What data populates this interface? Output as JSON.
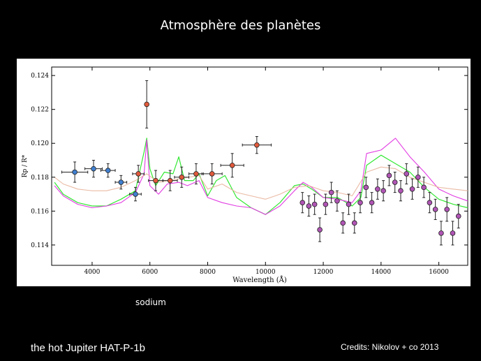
{
  "slide": {
    "title": "Atmosphère des planètes",
    "annotation": "sodium",
    "caption": "the hot Jupiter HAT-P-1b",
    "credits": "Credits: Nikolov + co 2013"
  },
  "chart_data": {
    "type": "scatter",
    "xlabel": "Wavelength (Å)",
    "ylabel": "Rp / R*",
    "xlim": [
      2600,
      17000
    ],
    "ylim": [
      0.1128,
      0.1245
    ],
    "xticks": [
      4000,
      6000,
      8000,
      10000,
      12000,
      14000,
      16000
    ],
    "yticks": [
      0.114,
      0.116,
      0.118,
      0.12,
      0.122,
      0.124
    ],
    "xtick_labels": [
      "4000",
      "6000",
      "8000",
      "10000",
      "12000",
      "14000",
      "16000"
    ],
    "ytick_labels": [
      "0.114",
      "0.116",
      "0.118",
      "0.120",
      "0.122",
      "0.124"
    ],
    "grid": false,
    "series": [
      {
        "color": "#3f7fd0",
        "points": [
          {
            "x": 3400,
            "y": 0.1183,
            "xerr": 450,
            "yerr": 0.0006
          },
          {
            "x": 4050,
            "y": 0.1185,
            "xerr": 300,
            "yerr": 0.0005
          },
          {
            "x": 4550,
            "y": 0.1184,
            "xerr": 250,
            "yerr": 0.0004
          },
          {
            "x": 5000,
            "y": 0.1177,
            "xerr": 200,
            "yerr": 0.0004
          },
          {
            "x": 5500,
            "y": 0.117,
            "xerr": 200,
            "yerr": 0.0004
          }
        ]
      },
      {
        "color": "#e05a3c",
        "points": [
          {
            "x": 5600,
            "y": 0.1182,
            "xerr": 200,
            "yerr": 0.0005
          },
          {
            "x": 5890,
            "y": 0.1223,
            "xerr": 50,
            "yerr": 0.0014
          },
          {
            "x": 6200,
            "y": 0.1178,
            "xerr": 250,
            "yerr": 0.0006
          },
          {
            "x": 6700,
            "y": 0.1178,
            "xerr": 250,
            "yerr": 0.0006
          },
          {
            "x": 7100,
            "y": 0.118,
            "xerr": 250,
            "yerr": 0.0006
          },
          {
            "x": 7600,
            "y": 0.1182,
            "xerr": 250,
            "yerr": 0.0006
          },
          {
            "x": 8150,
            "y": 0.1182,
            "xerr": 350,
            "yerr": 0.0006
          },
          {
            "x": 8850,
            "y": 0.1187,
            "xerr": 400,
            "yerr": 0.0007
          },
          {
            "x": 9700,
            "y": 0.1199,
            "xerr": 500,
            "yerr": 0.0005
          }
        ]
      },
      {
        "color": "#b055b5",
        "points": [
          {
            "x": 11280,
            "y": 0.1165,
            "yerr": 0.0006
          },
          {
            "x": 11500,
            "y": 0.1163,
            "yerr": 0.0006
          },
          {
            "x": 11700,
            "y": 0.1164,
            "yerr": 0.0006
          },
          {
            "x": 11880,
            "y": 0.1149,
            "yerr": 0.0007
          },
          {
            "x": 12080,
            "y": 0.1164,
            "yerr": 0.0006
          },
          {
            "x": 12280,
            "y": 0.1171,
            "yerr": 0.0006
          },
          {
            "x": 12480,
            "y": 0.1166,
            "yerr": 0.0006
          },
          {
            "x": 12680,
            "y": 0.1153,
            "yerr": 0.0006
          },
          {
            "x": 12880,
            "y": 0.1164,
            "yerr": 0.0006
          },
          {
            "x": 13080,
            "y": 0.1153,
            "yerr": 0.0006
          },
          {
            "x": 13280,
            "y": 0.1165,
            "yerr": 0.0006
          },
          {
            "x": 13480,
            "y": 0.1174,
            "yerr": 0.0006
          },
          {
            "x": 13680,
            "y": 0.1165,
            "yerr": 0.0006
          },
          {
            "x": 13880,
            "y": 0.1173,
            "yerr": 0.0006
          },
          {
            "x": 14080,
            "y": 0.1172,
            "yerr": 0.0006
          },
          {
            "x": 14280,
            "y": 0.1181,
            "yerr": 0.0006
          },
          {
            "x": 14480,
            "y": 0.1177,
            "yerr": 0.0006
          },
          {
            "x": 14680,
            "y": 0.1172,
            "yerr": 0.0006
          },
          {
            "x": 14880,
            "y": 0.1182,
            "yerr": 0.0006
          },
          {
            "x": 15080,
            "y": 0.1173,
            "yerr": 0.0006
          },
          {
            "x": 15280,
            "y": 0.118,
            "yerr": 0.0006
          },
          {
            "x": 15480,
            "y": 0.1174,
            "yerr": 0.0006
          },
          {
            "x": 15680,
            "y": 0.1165,
            "yerr": 0.0006
          },
          {
            "x": 15880,
            "y": 0.1161,
            "yerr": 0.0006
          },
          {
            "x": 16080,
            "y": 0.1147,
            "yerr": 0.0007
          },
          {
            "x": 16280,
            "y": 0.1161,
            "yerr": 0.0007
          },
          {
            "x": 16480,
            "y": 0.1147,
            "yerr": 0.0007
          },
          {
            "x": 16680,
            "y": 0.1157,
            "yerr": 0.0007
          }
        ]
      }
    ],
    "models": [
      {
        "color": "#33e833",
        "points": [
          [
            2700,
            0.1177
          ],
          [
            3000,
            0.117
          ],
          [
            3500,
            0.1165
          ],
          [
            4000,
            0.1163
          ],
          [
            4500,
            0.1163
          ],
          [
            5000,
            0.1167
          ],
          [
            5500,
            0.1172
          ],
          [
            5800,
            0.1195
          ],
          [
            5890,
            0.1203
          ],
          [
            6000,
            0.1185
          ],
          [
            6200,
            0.1175
          ],
          [
            6500,
            0.1183
          ],
          [
            6800,
            0.1182
          ],
          [
            7000,
            0.1192
          ],
          [
            7200,
            0.1178
          ],
          [
            7500,
            0.1178
          ],
          [
            7700,
            0.1182
          ],
          [
            8000,
            0.1169
          ],
          [
            8300,
            0.1178
          ],
          [
            8600,
            0.1181
          ],
          [
            9000,
            0.1168
          ],
          [
            9500,
            0.1162
          ],
          [
            10000,
            0.1158
          ],
          [
            10500,
            0.1165
          ],
          [
            11000,
            0.1175
          ],
          [
            11300,
            0.1176
          ],
          [
            11600,
            0.1173
          ],
          [
            12000,
            0.1168
          ],
          [
            12500,
            0.1168
          ],
          [
            13000,
            0.1163
          ],
          [
            13300,
            0.1168
          ],
          [
            13500,
            0.1187
          ],
          [
            14000,
            0.1193
          ],
          [
            14500,
            0.1188
          ],
          [
            15000,
            0.1183
          ],
          [
            15500,
            0.1174
          ],
          [
            16000,
            0.1167
          ],
          [
            16500,
            0.1164
          ],
          [
            17000,
            0.1162
          ]
        ]
      },
      {
        "color": "#e23be2",
        "points": [
          [
            2700,
            0.1175
          ],
          [
            3000,
            0.1169
          ],
          [
            3500,
            0.1164
          ],
          [
            4000,
            0.1162
          ],
          [
            4500,
            0.1163
          ],
          [
            5000,
            0.1165
          ],
          [
            5500,
            0.1171
          ],
          [
            5800,
            0.1182
          ],
          [
            5890,
            0.1202
          ],
          [
            6000,
            0.1175
          ],
          [
            6300,
            0.117
          ],
          [
            6600,
            0.1176
          ],
          [
            7000,
            0.1177
          ],
          [
            7300,
            0.1175
          ],
          [
            7700,
            0.1178
          ],
          [
            8000,
            0.1168
          ],
          [
            8500,
            0.1165
          ],
          [
            9000,
            0.1163
          ],
          [
            9500,
            0.1162
          ],
          [
            10000,
            0.1158
          ],
          [
            10500,
            0.1163
          ],
          [
            11000,
            0.1172
          ],
          [
            11300,
            0.1177
          ],
          [
            11600,
            0.1174
          ],
          [
            12000,
            0.1168
          ],
          [
            12500,
            0.1167
          ],
          [
            13000,
            0.1165
          ],
          [
            13300,
            0.1172
          ],
          [
            13500,
            0.1194
          ],
          [
            14000,
            0.1196
          ],
          [
            14500,
            0.1203
          ],
          [
            15000,
            0.1192
          ],
          [
            15500,
            0.1183
          ],
          [
            16000,
            0.1173
          ],
          [
            16500,
            0.1169
          ],
          [
            17000,
            0.1166
          ]
        ]
      },
      {
        "color": "#e8b39a",
        "points": [
          [
            2700,
            0.118
          ],
          [
            3000,
            0.1176
          ],
          [
            3500,
            0.1173
          ],
          [
            4000,
            0.1172
          ],
          [
            4500,
            0.1172
          ],
          [
            5000,
            0.1174
          ],
          [
            5500,
            0.1178
          ],
          [
            5890,
            0.1182
          ],
          [
            6300,
            0.1177
          ],
          [
            7000,
            0.1179
          ],
          [
            7700,
            0.1181
          ],
          [
            8000,
            0.1173
          ],
          [
            8500,
            0.1176
          ],
          [
            9000,
            0.1171
          ],
          [
            9500,
            0.1169
          ],
          [
            10000,
            0.1167
          ],
          [
            10500,
            0.117
          ],
          [
            11000,
            0.1174
          ],
          [
            11500,
            0.1175
          ],
          [
            12000,
            0.1172
          ],
          [
            12500,
            0.1171
          ],
          [
            13000,
            0.1169
          ],
          [
            13500,
            0.1183
          ],
          [
            14000,
            0.1186
          ],
          [
            14500,
            0.1185
          ],
          [
            15000,
            0.118
          ],
          [
            15500,
            0.1177
          ],
          [
            16000,
            0.1174
          ],
          [
            16500,
            0.1173
          ],
          [
            17000,
            0.1172
          ]
        ]
      }
    ]
  }
}
